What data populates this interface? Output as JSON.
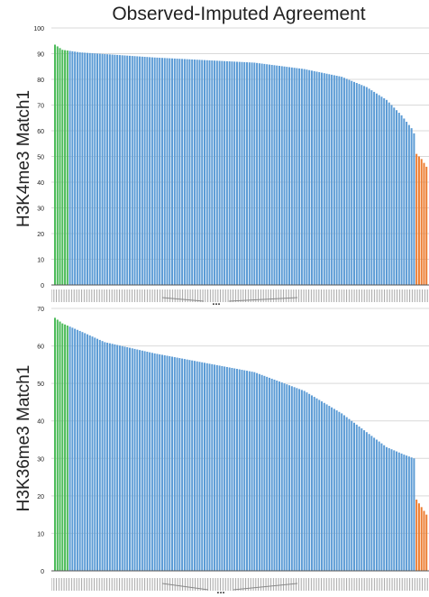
{
  "title": "Observed-Imputed Agreement",
  "colors": {
    "observed": "#5B9BD5",
    "left_highlight": "#4CBB5A",
    "right_highlight": "#ED7D31",
    "grid": "#d9d9d9"
  },
  "gap_marker": "...",
  "chart_data": [
    {
      "type": "bar",
      "ylabel": "H3K4me3 Match1",
      "ylim": [
        0,
        100
      ],
      "yticks": [
        0,
        10,
        20,
        30,
        40,
        50,
        60,
        70,
        80,
        90,
        100
      ],
      "grid": true,
      "bar_count": 150,
      "green_bars": 6,
      "orange_bars": 5,
      "profile": [
        [
          0,
          93.5
        ],
        [
          3,
          91.5
        ],
        [
          10,
          90.5
        ],
        [
          40,
          88.5
        ],
        [
          80,
          86.5
        ],
        [
          100,
          84
        ],
        [
          115,
          81
        ],
        [
          125,
          77
        ],
        [
          133,
          72
        ],
        [
          139,
          66
        ],
        [
          143,
          61
        ],
        [
          144,
          59
        ],
        [
          145,
          51
        ],
        [
          147,
          49
        ],
        [
          149,
          46
        ]
      ]
    },
    {
      "type": "bar",
      "ylabel": "H3K36me3 Match1",
      "ylim": [
        0,
        70
      ],
      "yticks": [
        0,
        10,
        20,
        30,
        40,
        50,
        60,
        70
      ],
      "grid": true,
      "bar_count": 150,
      "green_bars": 6,
      "orange_bars": 5,
      "profile": [
        [
          0,
          67.5
        ],
        [
          3,
          66
        ],
        [
          10,
          64
        ],
        [
          20,
          61
        ],
        [
          40,
          58
        ],
        [
          60,
          55.5
        ],
        [
          80,
          53
        ],
        [
          100,
          48
        ],
        [
          115,
          42
        ],
        [
          125,
          37
        ],
        [
          133,
          33
        ],
        [
          140,
          31
        ],
        [
          144,
          30
        ],
        [
          145,
          19
        ],
        [
          147,
          17
        ],
        [
          149,
          15
        ]
      ]
    }
  ]
}
